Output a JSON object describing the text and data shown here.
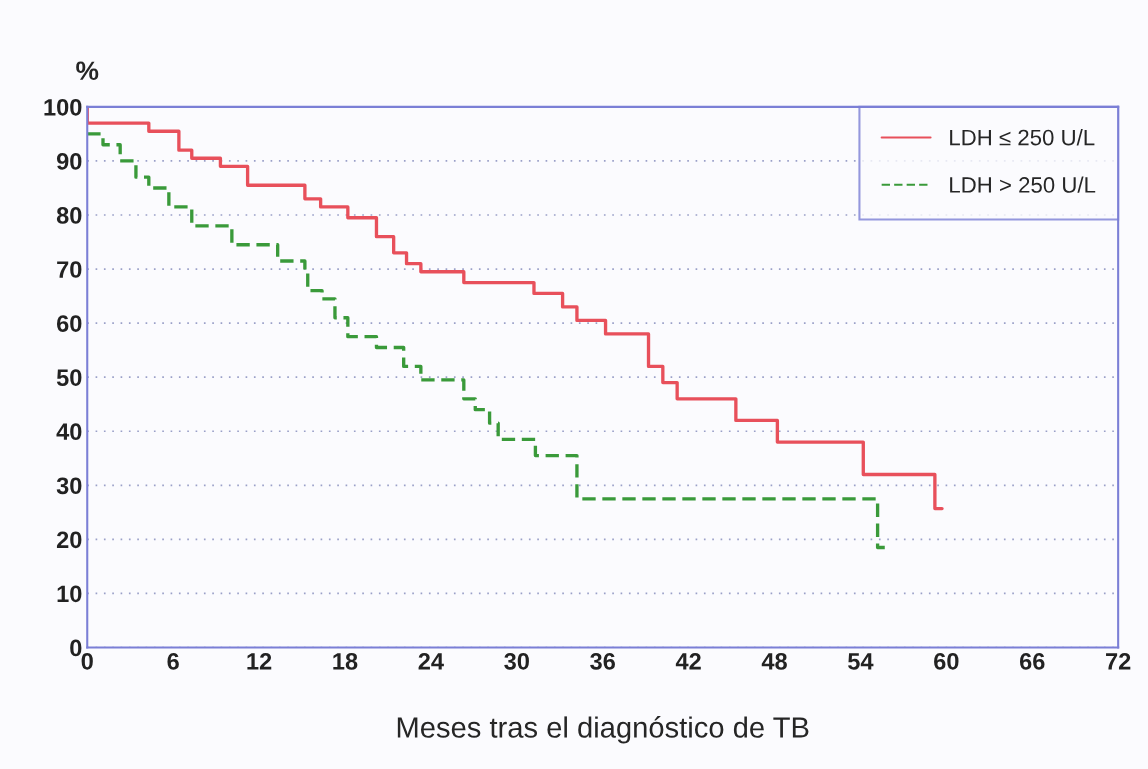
{
  "chart_data": {
    "type": "step",
    "xlabel": "Meses tras el diagnóstico de TB",
    "ylabel": "%",
    "xlim": [
      0,
      72
    ],
    "xticks": [
      0,
      6,
      12,
      18,
      24,
      30,
      36,
      42,
      48,
      54,
      60,
      66,
      72
    ],
    "ylim": [
      0,
      100
    ],
    "yticks": [
      0,
      10,
      20,
      30,
      40,
      50,
      60,
      70,
      80,
      90,
      100
    ],
    "grid": "y",
    "legend": "top right",
    "series": [
      {
        "name": "LDH ≤ 250 U/L",
        "color": "#e8505b",
        "line_style": "solid",
        "x": [
          0,
          0,
          4.3,
          6.4,
          7.3,
          9.3,
          11.2,
          15.2,
          16.3,
          18.2,
          20.2,
          21.4,
          22.3,
          23.3,
          26.3,
          31.2,
          33.2,
          34.2,
          36.2,
          39.2,
          40.2,
          41.2,
          45.3,
          48.2,
          54.2,
          59.2,
          59.7
        ],
        "values": [
          100,
          97,
          95.5,
          92,
          90.5,
          89,
          85.5,
          83,
          81.5,
          79.5,
          76,
          73,
          71,
          69.5,
          67.5,
          65.5,
          63,
          60.5,
          58,
          52,
          49,
          46,
          42,
          38,
          32,
          25.7,
          25.7
        ]
      },
      {
        "name": "LDH > 250 U/L",
        "color": "#3a9a3a",
        "line_style": "dashed",
        "x": [
          0,
          1.1,
          2.3,
          3.4,
          4.3,
          5.7,
          7.3,
          10.1,
          13.3,
          15.2,
          15.4,
          16.4,
          17.3,
          18.2,
          20.2,
          22.1,
          23.3,
          26.3,
          27.1,
          28.1,
          28.7,
          31.3,
          34.2,
          55.2,
          55.7
        ],
        "values": [
          95,
          93,
          90,
          87,
          85,
          81.5,
          78,
          74.5,
          71.5,
          69.5,
          66,
          64.5,
          61,
          57.5,
          55.5,
          52,
          49.5,
          46,
          44,
          41.5,
          38.5,
          35.5,
          27.5,
          18.5,
          18.5
        ]
      }
    ]
  }
}
